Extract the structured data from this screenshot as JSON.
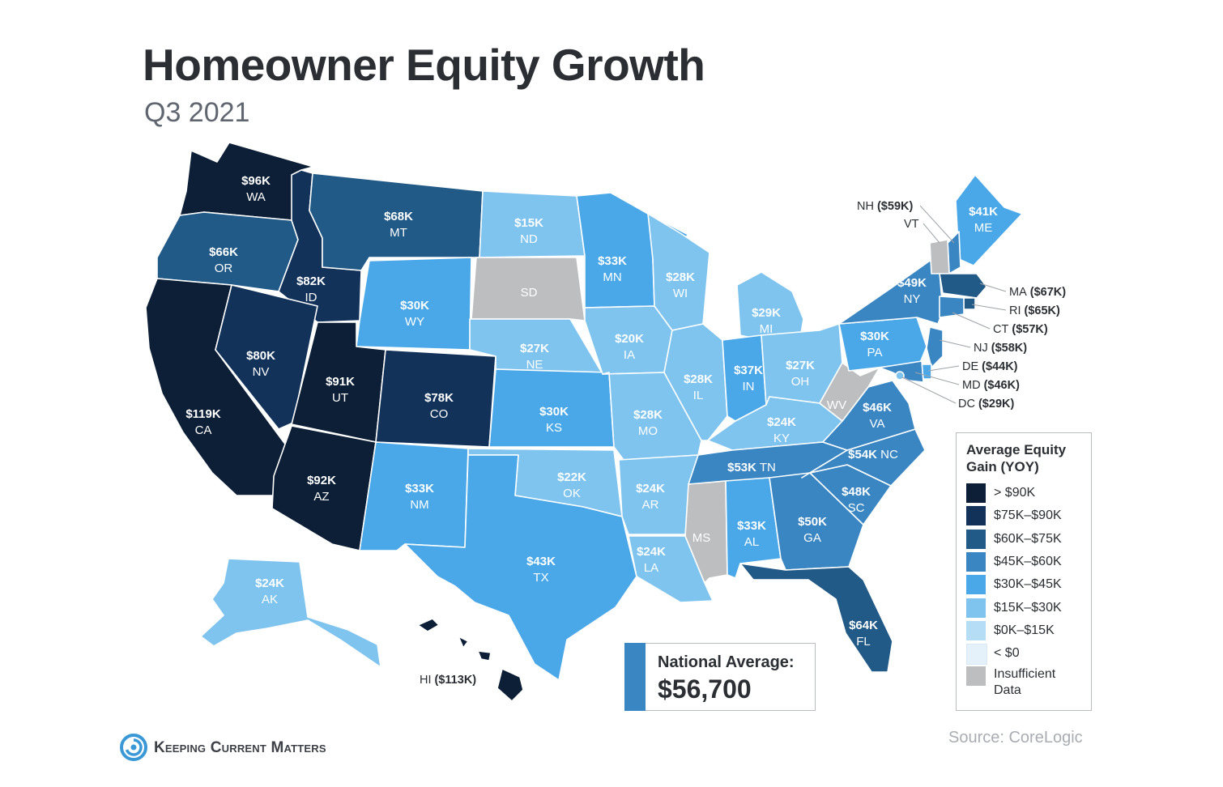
{
  "title": "Homeowner Equity Growth",
  "subtitle": "Q3 2021",
  "palette": {
    "gt90": "#0c1f36",
    "r75_90": "#12325a",
    "r60_75": "#225a87",
    "r45_60": "#3a86c2",
    "r30_45": "#4aa8e8",
    "r15_30": "#7fc4ee",
    "r0_15": "#b6ddf6",
    "lt0": "#e4f1fb",
    "insufficient": "#bcbec0"
  },
  "states": [
    {
      "id": "WA",
      "value": "$96K",
      "abbr": "WA",
      "cls": "gt90"
    },
    {
      "id": "OR",
      "value": "$66K",
      "abbr": "OR",
      "cls": "r60_75"
    },
    {
      "id": "CA",
      "value": "$119K",
      "abbr": "CA",
      "cls": "gt90"
    },
    {
      "id": "ID",
      "value": "$82K",
      "abbr": "ID",
      "cls": "r75_90"
    },
    {
      "id": "NV",
      "value": "$80K",
      "abbr": "NV",
      "cls": "r75_90"
    },
    {
      "id": "MT",
      "value": "$68K",
      "abbr": "MT",
      "cls": "r60_75"
    },
    {
      "id": "WY",
      "value": "$30K",
      "abbr": "WY",
      "cls": "r30_45"
    },
    {
      "id": "UT",
      "value": "$91K",
      "abbr": "UT",
      "cls": "gt90"
    },
    {
      "id": "AZ",
      "value": "$92K",
      "abbr": "AZ",
      "cls": "gt90"
    },
    {
      "id": "CO",
      "value": "$78K",
      "abbr": "CO",
      "cls": "r75_90"
    },
    {
      "id": "NM",
      "value": "$33K",
      "abbr": "NM",
      "cls": "r30_45"
    },
    {
      "id": "ND",
      "value": "$15K",
      "abbr": "ND",
      "cls": "r15_30"
    },
    {
      "id": "SD",
      "value": "",
      "abbr": "SD",
      "cls": "insufficient"
    },
    {
      "id": "NE",
      "value": "$27K",
      "abbr": "NE",
      "cls": "r15_30"
    },
    {
      "id": "KS",
      "value": "$30K",
      "abbr": "KS",
      "cls": "r30_45"
    },
    {
      "id": "OK",
      "value": "$22K",
      "abbr": "OK",
      "cls": "r15_30"
    },
    {
      "id": "TX",
      "value": "$43K",
      "abbr": "TX",
      "cls": "r30_45"
    },
    {
      "id": "MN",
      "value": "$33K",
      "abbr": "MN",
      "cls": "r30_45"
    },
    {
      "id": "IA",
      "value": "$20K",
      "abbr": "IA",
      "cls": "r15_30"
    },
    {
      "id": "MO",
      "value": "$28K",
      "abbr": "MO",
      "cls": "r15_30"
    },
    {
      "id": "AR",
      "value": "$24K",
      "abbr": "AR",
      "cls": "r15_30"
    },
    {
      "id": "LA",
      "value": "$24K",
      "abbr": "LA",
      "cls": "r15_30"
    },
    {
      "id": "WI",
      "value": "$28K",
      "abbr": "WI",
      "cls": "r15_30"
    },
    {
      "id": "IL",
      "value": "$28K",
      "abbr": "IL",
      "cls": "r15_30"
    },
    {
      "id": "MI",
      "value": "$29K",
      "abbr": "MI",
      "cls": "r15_30"
    },
    {
      "id": "IN",
      "value": "$37K",
      "abbr": "IN",
      "cls": "r30_45"
    },
    {
      "id": "OH",
      "value": "$27K",
      "abbr": "OH",
      "cls": "r15_30"
    },
    {
      "id": "KY",
      "value": "$24K",
      "abbr": "KY",
      "cls": "r15_30"
    },
    {
      "id": "TN",
      "value": "$53K",
      "abbr": "TN",
      "cls": "r45_60"
    },
    {
      "id": "MS",
      "value": "",
      "abbr": "MS",
      "cls": "insufficient"
    },
    {
      "id": "AL",
      "value": "$33K",
      "abbr": "AL",
      "cls": "r30_45"
    },
    {
      "id": "GA",
      "value": "$50K",
      "abbr": "GA",
      "cls": "r45_60"
    },
    {
      "id": "FL",
      "value": "$64K",
      "abbr": "FL",
      "cls": "r60_75"
    },
    {
      "id": "SC",
      "value": "$48K",
      "abbr": "SC",
      "cls": "r45_60"
    },
    {
      "id": "NC",
      "value": "$54K",
      "abbr": "NC",
      "cls": "r45_60"
    },
    {
      "id": "VA",
      "value": "$46K",
      "abbr": "VA",
      "cls": "r45_60"
    },
    {
      "id": "WV",
      "value": "",
      "abbr": "WV",
      "cls": "insufficient"
    },
    {
      "id": "PA",
      "value": "$30K",
      "abbr": "PA",
      "cls": "r30_45"
    },
    {
      "id": "NY",
      "value": "$49K",
      "abbr": "NY",
      "cls": "r45_60"
    },
    {
      "id": "ME",
      "value": "$41K",
      "abbr": "ME",
      "cls": "r30_45"
    },
    {
      "id": "AK",
      "value": "$24K",
      "abbr": "AK",
      "cls": "r15_30"
    },
    {
      "id": "HI",
      "value": "$113K",
      "abbr": "HI",
      "cls": "gt90"
    }
  ],
  "small_states": [
    {
      "id": "NH",
      "abbr": "NH",
      "value": "($59K)",
      "cls": "r45_60"
    },
    {
      "id": "VT",
      "abbr": "VT",
      "value": "",
      "cls": "insufficient"
    },
    {
      "id": "MA",
      "abbr": "MA",
      "value": "($67K)",
      "cls": "r60_75"
    },
    {
      "id": "RI",
      "abbr": "RI",
      "value": "($65K)",
      "cls": "r60_75"
    },
    {
      "id": "CT",
      "abbr": "CT",
      "value": "($57K)",
      "cls": "r45_60"
    },
    {
      "id": "NJ",
      "abbr": "NJ",
      "value": "($58K)",
      "cls": "r45_60"
    },
    {
      "id": "DE",
      "abbr": "DE",
      "value": "($44K)",
      "cls": "r30_45"
    },
    {
      "id": "MD",
      "abbr": "MD",
      "value": "($46K)",
      "cls": "r45_60"
    },
    {
      "id": "DC",
      "abbr": "DC",
      "value": "($29K)",
      "cls": "r15_30"
    },
    {
      "id": "HI",
      "abbr": "HI",
      "value": "($113K)",
      "cls": "gt90"
    }
  ],
  "legend": {
    "title": "Average Equity Gain (YOY)",
    "items": [
      {
        "label": "> $90K",
        "cls": "gt90"
      },
      {
        "label": "$75K–$90K",
        "cls": "r75_90"
      },
      {
        "label": "$60K–$75K",
        "cls": "r60_75"
      },
      {
        "label": "$45K–$60K",
        "cls": "r45_60"
      },
      {
        "label": "$30K–$45K",
        "cls": "r30_45"
      },
      {
        "label": "$15K–$30K",
        "cls": "r15_30"
      },
      {
        "label": "$0K–$15K",
        "cls": "r0_15"
      },
      {
        "label": "< $0",
        "cls": "lt0"
      },
      {
        "label": "Insufficient Data",
        "cls": "insufficient"
      }
    ]
  },
  "national": {
    "label": "National Average:",
    "value": "$56,700"
  },
  "source": "Source: CoreLogic",
  "brand": {
    "text": "Keeping Current Matters",
    "logo_icon": "kcm-swirl-icon"
  }
}
